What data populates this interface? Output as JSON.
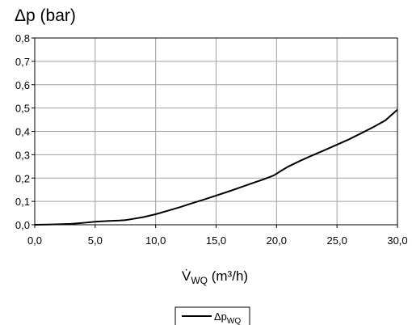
{
  "chart_data": {
    "type": "line",
    "title": "",
    "ylabel": "Δp (bar)",
    "xlabel": {
      "symbol": "V̇",
      "subscript": "WQ",
      "unit": " (m³/h)"
    },
    "xlim": [
      0,
      30
    ],
    "ylim": [
      0,
      0.8
    ],
    "xticks": [
      "0,0",
      "5,0",
      "10,0",
      "15,0",
      "20,0",
      "25,0",
      "30,0"
    ],
    "xtick_values": [
      0,
      5,
      10,
      15,
      20,
      25,
      30
    ],
    "yticks": [
      "0,0",
      "0,1",
      "0,2",
      "0,3",
      "0,4",
      "0,5",
      "0,6",
      "0,7",
      "0,8"
    ],
    "ytick_values": [
      0,
      0.1,
      0.2,
      0.3,
      0.4,
      0.5,
      0.6,
      0.7,
      0.8
    ],
    "grid": true,
    "legend_position": "bottom-center",
    "line_color": "#000000",
    "grid_color": "#a0a0a0",
    "series": [
      {
        "name": "Δp",
        "name_subscript": "WQ",
        "x": [
          0,
          1,
          2,
          3,
          4,
          5,
          6,
          7,
          7.5,
          8,
          9,
          10,
          11,
          12,
          13,
          14,
          15,
          16,
          17,
          18,
          19,
          19.8,
          20.5,
          21,
          22,
          23,
          24,
          25,
          26,
          27,
          28,
          29,
          30
        ],
        "y": [
          0,
          0.001,
          0.002,
          0.004,
          0.008,
          0.013,
          0.016,
          0.018,
          0.02,
          0.024,
          0.033,
          0.045,
          0.06,
          0.075,
          0.092,
          0.108,
          0.125,
          0.142,
          0.16,
          0.178,
          0.196,
          0.212,
          0.235,
          0.25,
          0.275,
          0.298,
          0.32,
          0.343,
          0.366,
          0.392,
          0.418,
          0.447,
          0.493
        ]
      }
    ]
  }
}
